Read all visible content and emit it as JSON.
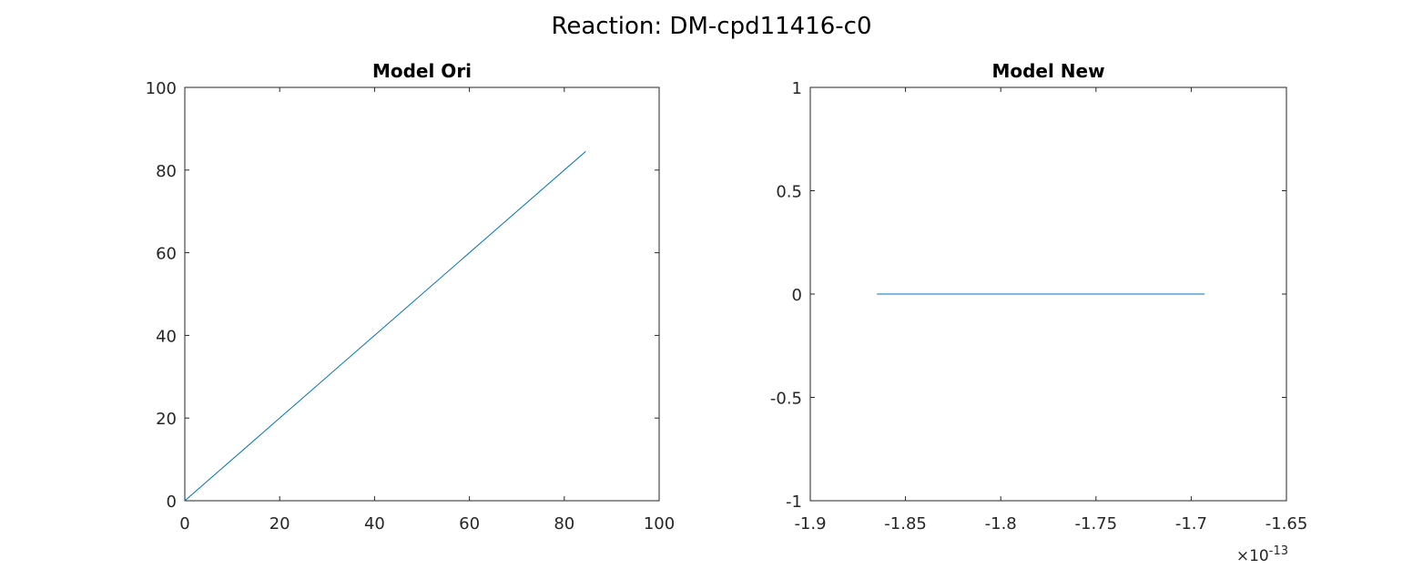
{
  "figure": {
    "suptitle": "Reaction: DM-cpd11416-c0"
  },
  "colors": {
    "series": "#0072bd",
    "axes": "#262626"
  },
  "chart_data": [
    {
      "type": "line",
      "title": "Model Ori",
      "xlabel": "",
      "ylabel": "",
      "xlim": [
        0,
        100
      ],
      "ylim": [
        0,
        100
      ],
      "xticks": [
        0,
        20,
        40,
        60,
        80,
        100
      ],
      "xtick_labels": [
        "0",
        "20",
        "40",
        "60",
        "80",
        "100"
      ],
      "yticks": [
        0,
        20,
        40,
        60,
        80,
        100
      ],
      "ytick_labels": [
        "0",
        "20",
        "40",
        "60",
        "80",
        "100"
      ],
      "grid": false,
      "series": [
        {
          "x": [
            0,
            84.5
          ],
          "y": [
            0,
            84.5
          ]
        }
      ]
    },
    {
      "type": "line",
      "title": "Model New",
      "xlabel": "",
      "ylabel": "",
      "xlim": [
        -1.9e-13,
        -1.65e-13
      ],
      "ylim": [
        -1,
        1
      ],
      "xticks": [
        -1.9e-13,
        -1.85e-13,
        -1.8e-13,
        -1.75e-13,
        -1.7e-13,
        -1.65e-13
      ],
      "xtick_labels": [
        "-1.9",
        "-1.85",
        "-1.8",
        "-1.75",
        "-1.7",
        "-1.65"
      ],
      "x_exponent_label": "×10",
      "x_exponent": "-13",
      "yticks": [
        -1,
        -0.5,
        0,
        0.5,
        1
      ],
      "ytick_labels": [
        "-1",
        "-0.5",
        "0",
        "0.5",
        "1"
      ],
      "grid": false,
      "series": [
        {
          "x": [
            -1.865e-13,
            -1.693e-13
          ],
          "y": [
            0,
            0
          ]
        }
      ]
    }
  ]
}
